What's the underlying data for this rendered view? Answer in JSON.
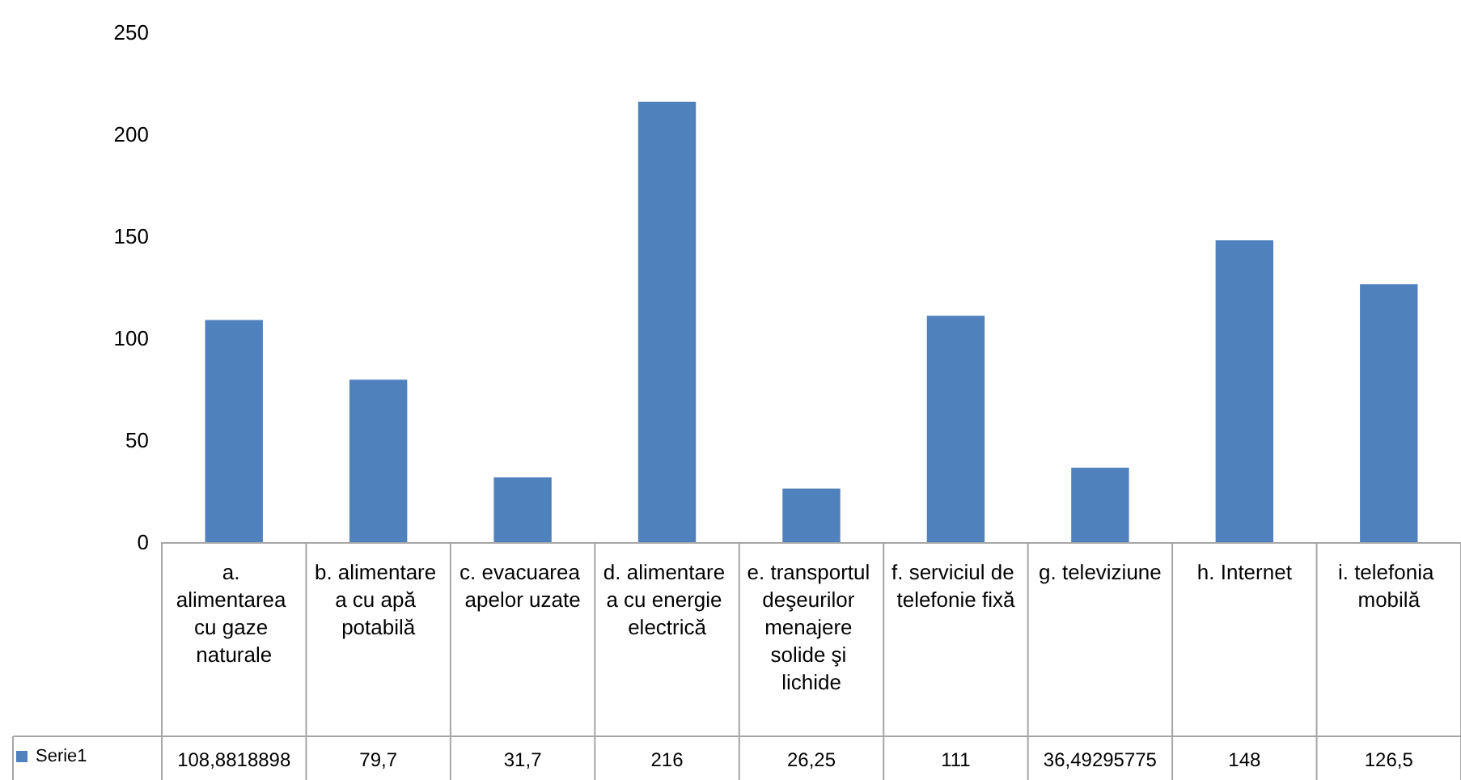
{
  "chart_data": {
    "type": "bar",
    "categories": [
      "a. alimentarea cu gaze naturale",
      "b. alimentare a cu apă potabilă",
      "c. evacuarea apelor uzate",
      "d. alimentare a cu energie electrică",
      "e. transportul deşeurilor menajere solide şi lichide",
      "f. serviciul de telefonie fixă",
      "g. televiziune",
      "h. Internet",
      "i. telefonia mobilă"
    ],
    "series": [
      {
        "name": "Serie1",
        "color": "#4f81bd",
        "values": [
          108.8818898,
          79.7,
          31.7,
          216,
          26.25,
          111,
          36.49295775,
          148,
          126.5
        ],
        "value_labels": [
          "108,8818898",
          "79,7",
          "31,7",
          "216",
          "26,25",
          "111",
          "36,49295775",
          "148",
          "126,5"
        ]
      }
    ],
    "ylim": [
      0,
      250
    ],
    "yticks": [
      0,
      50,
      100,
      150,
      200,
      250
    ],
    "grid": false,
    "legend": "bottom left"
  }
}
